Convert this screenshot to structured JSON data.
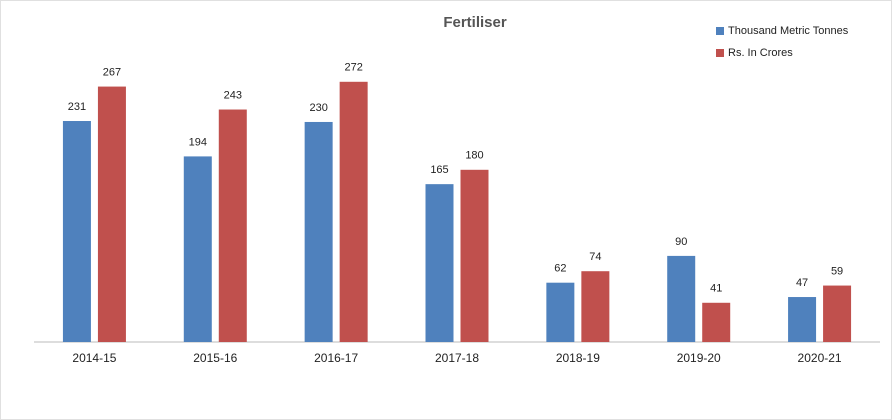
{
  "chart_data": {
    "type": "bar",
    "title": "Fertiliser",
    "categories": [
      "2014-15",
      "2015-16",
      "2016-17",
      "2017-18",
      "2018-19",
      "2019-20",
      "2020-21"
    ],
    "series": [
      {
        "name": "Thousand Metric Tonnes",
        "color": "#4f81bd",
        "values": [
          231,
          194,
          230,
          165,
          62,
          90,
          47
        ]
      },
      {
        "name": "Rs. In Crores",
        "color": "#c0504d",
        "values": [
          267,
          243,
          272,
          180,
          74,
          41,
          59
        ]
      }
    ],
    "ylim": [
      0,
      300
    ],
    "legend": "top-right"
  }
}
